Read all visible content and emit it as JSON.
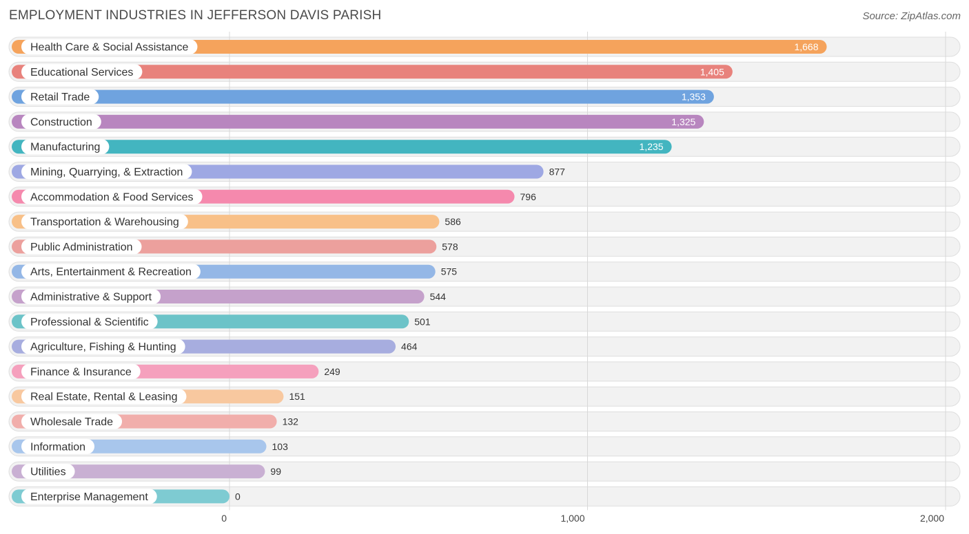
{
  "header": {
    "title": "EMPLOYMENT INDUSTRIES IN JEFFERSON DAVIS PARISH",
    "source": "Source: ZipAtlas.com"
  },
  "chart_data": {
    "type": "bar",
    "orientation": "horizontal",
    "title": "EMPLOYMENT INDUSTRIES IN JEFFERSON DAVIS PARISH",
    "xlim": [
      0,
      2000
    ],
    "ticks": [
      {
        "value": 0,
        "label": "0"
      },
      {
        "value": 1000,
        "label": "1,000"
      },
      {
        "value": 2000,
        "label": "2,000"
      }
    ],
    "grid": true,
    "categories": [
      "Health Care & Social Assistance",
      "Educational Services",
      "Retail Trade",
      "Construction",
      "Manufacturing",
      "Mining, Quarrying, & Extraction",
      "Accommodation & Food Services",
      "Transportation & Warehousing",
      "Public Administration",
      "Arts, Entertainment & Recreation",
      "Administrative & Support",
      "Professional & Scientific",
      "Agriculture, Fishing & Hunting",
      "Finance & Insurance",
      "Real Estate, Rental & Leasing",
      "Wholesale Trade",
      "Information",
      "Utilities",
      "Enterprise Management"
    ],
    "values": [
      1668,
      1405,
      1353,
      1325,
      1235,
      877,
      796,
      586,
      578,
      575,
      544,
      501,
      464,
      249,
      151,
      132,
      103,
      99,
      0
    ],
    "value_labels": [
      "1,668",
      "1,405",
      "1,353",
      "1,325",
      "1,235",
      "877",
      "796",
      "586",
      "578",
      "575",
      "544",
      "501",
      "464",
      "249",
      "151",
      "132",
      "103",
      "99",
      "0"
    ],
    "colors": [
      "#f5a35c",
      "#e8827c",
      "#6fa3df",
      "#b886bf",
      "#43b5c0",
      "#9ea8e3",
      "#f589ad",
      "#f8c088",
      "#eca09d",
      "#94b7e6",
      "#c5a1cb",
      "#6cc3c8",
      "#a7addf",
      "#f5a0bd",
      "#f8c89f",
      "#f1aeab",
      "#a8c6ec",
      "#c9b0d3",
      "#7ecbd2"
    ]
  }
}
